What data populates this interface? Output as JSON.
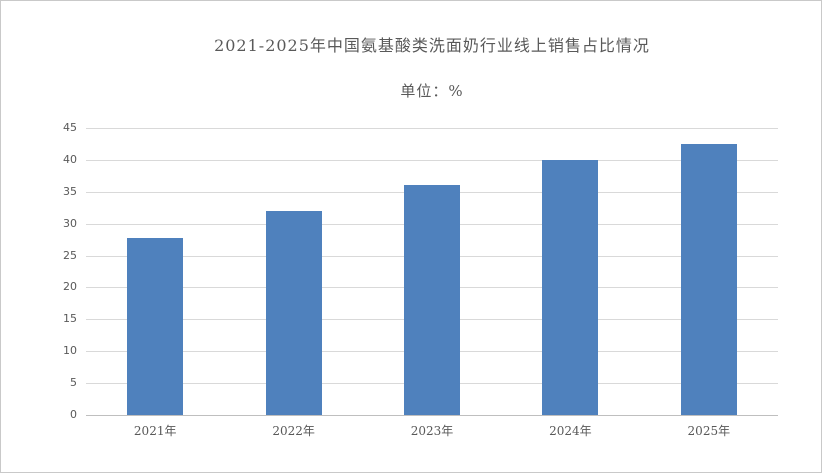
{
  "chart_data": {
    "type": "bar",
    "title": "2021-2025年中国氨基酸类洗面奶行业线上销售占比情况",
    "subtitle": "单位：%",
    "categories": [
      "2021年",
      "2022年",
      "2023年",
      "2024年",
      "2025年"
    ],
    "values": [
      27.8,
      32,
      36,
      40,
      42.5
    ],
    "xlabel": "",
    "ylabel": "",
    "ylim": [
      0,
      45
    ],
    "ytick_step": 5,
    "yticks": [
      0,
      5,
      10,
      15,
      20,
      25,
      30,
      35,
      40,
      45
    ],
    "grid": "horizontal gridlines on",
    "legend": "none",
    "colors": {
      "bar": "#4f81bd",
      "gridline": "#d9d9d9",
      "axis_line": "#bfbfbf",
      "text": "#595959",
      "background": "#ffffff",
      "frame_border": "#c9c9c9"
    }
  }
}
